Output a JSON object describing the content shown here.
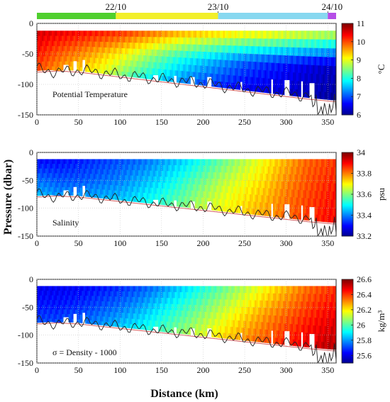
{
  "figure": {
    "shared_ylabel": "Pressure (dbar)",
    "shared_xlabel": "Distance (km)"
  },
  "timebar": {
    "dates": [
      {
        "label": "22/10",
        "km": 95
      },
      {
        "label": "23/10",
        "km": 218
      },
      {
        "label": "24/10",
        "km": 350
      }
    ],
    "segments": [
      {
        "from_km": 0,
        "to_km": 95,
        "color": "#4fcf2e"
      },
      {
        "from_km": 95,
        "to_km": 218,
        "color": "#f2ef2a"
      },
      {
        "from_km": 218,
        "to_km": 350,
        "color": "#87d8f0"
      },
      {
        "from_km": 350,
        "to_km": 360,
        "color": "#b54de6"
      }
    ]
  },
  "chart_data": [
    {
      "type": "heatmap",
      "annotation": "Potential Temperature",
      "x_ticks": [
        0,
        50,
        100,
        150,
        200,
        250,
        300,
        350
      ],
      "y_ticks": [
        0,
        -50,
        -100,
        -150
      ],
      "xlim": [
        0,
        360
      ],
      "ylim": [
        -150,
        0
      ],
      "colorbar": {
        "min": 6,
        "max": 11,
        "ticks": [
          6,
          7,
          8,
          9,
          10,
          11
        ],
        "label": "°C"
      },
      "field": {
        "x_km": [
          0,
          25,
          50,
          75,
          100,
          125,
          150,
          175,
          200,
          225,
          250,
          275,
          300,
          325,
          355
        ],
        "surface_values": [
          10.6,
          10.5,
          10.4,
          10.3,
          10.2,
          10.0,
          9.8,
          9.6,
          9.5,
          9.4,
          9.3,
          9.3,
          9.2,
          9.1,
          9.0
        ],
        "mid_values": [
          10.3,
          10.0,
          9.8,
          9.5,
          9.2,
          8.8,
          8.4,
          8.0,
          7.7,
          7.4,
          7.1,
          6.9,
          6.7,
          6.5,
          6.3
        ],
        "deep_values": [
          10.0,
          9.6,
          9.3,
          9.0,
          8.5,
          8.0,
          7.6,
          7.2,
          6.9,
          6.7,
          6.5,
          6.4,
          6.3,
          6.2,
          6.1
        ]
      },
      "bathymetry_dbar": [
        -75,
        -80,
        -77,
        -80,
        -85,
        -88,
        -92,
        -95,
        -98,
        -103,
        -108,
        -112,
        -115,
        -118,
        -120
      ],
      "smooth_bottom_dbar": [
        -80,
        -78,
        -80,
        -84,
        -88,
        -92,
        -96,
        -100,
        -104,
        -108,
        -112,
        -116,
        -120,
        -124,
        -128
      ]
    },
    {
      "type": "heatmap",
      "annotation": "Salinity",
      "x_ticks": [
        0,
        50,
        100,
        150,
        200,
        250,
        300,
        350
      ],
      "y_ticks": [
        0,
        -50,
        -100,
        -150
      ],
      "xlim": [
        0,
        360
      ],
      "ylim": [
        -150,
        0
      ],
      "colorbar": {
        "min": 33.2,
        "max": 34,
        "ticks": [
          33.2,
          33.4,
          33.6,
          33.8,
          34
        ],
        "label": "psu"
      },
      "field": {
        "x_km": [
          0,
          25,
          50,
          75,
          100,
          125,
          150,
          175,
          200,
          225,
          250,
          275,
          300,
          325,
          355
        ],
        "surface_values": [
          33.3,
          33.3,
          33.32,
          33.34,
          33.36,
          33.38,
          33.42,
          33.46,
          33.52,
          33.58,
          33.64,
          33.7,
          33.76,
          33.82,
          33.85
        ],
        "mid_values": [
          33.38,
          33.36,
          33.36,
          33.38,
          33.4,
          33.44,
          33.48,
          33.54,
          33.6,
          33.66,
          33.7,
          33.74,
          33.8,
          33.84,
          33.88
        ],
        "deep_values": [
          33.45,
          33.42,
          33.42,
          33.44,
          33.46,
          33.5,
          33.55,
          33.6,
          33.66,
          33.7,
          33.74,
          33.78,
          33.82,
          33.86,
          33.9
        ]
      },
      "bathymetry_dbar": [
        -75,
        -80,
        -77,
        -80,
        -85,
        -88,
        -92,
        -95,
        -98,
        -103,
        -108,
        -112,
        -115,
        -118,
        -120
      ],
      "smooth_bottom_dbar": [
        -80,
        -78,
        -80,
        -84,
        -88,
        -92,
        -96,
        -100,
        -104,
        -108,
        -112,
        -116,
        -120,
        -124,
        -128
      ]
    },
    {
      "type": "heatmap",
      "annotation": "σ = Density - 1000",
      "x_ticks": [
        0,
        50,
        100,
        150,
        200,
        250,
        300,
        350
      ],
      "y_ticks": [
        0,
        -50,
        -100,
        -150
      ],
      "xlim": [
        0,
        360
      ],
      "ylim": [
        -150,
        0
      ],
      "colorbar": {
        "min": 25.5,
        "max": 26.6,
        "ticks": [
          25.6,
          25.8,
          26,
          26.2,
          26.4,
          26.6
        ],
        "label": "kg/m³"
      },
      "field": {
        "x_km": [
          0,
          25,
          50,
          75,
          100,
          125,
          150,
          175,
          200,
          225,
          250,
          275,
          300,
          325,
          355
        ],
        "surface_values": [
          25.62,
          25.62,
          25.63,
          25.65,
          25.68,
          25.72,
          25.78,
          25.86,
          25.94,
          26.02,
          26.1,
          26.18,
          26.26,
          26.34,
          26.4
        ],
        "mid_values": [
          25.66,
          25.66,
          25.68,
          25.72,
          25.76,
          25.82,
          25.9,
          25.98,
          26.06,
          26.14,
          26.22,
          26.3,
          26.36,
          26.42,
          26.48
        ],
        "deep_values": [
          25.72,
          25.72,
          25.75,
          25.8,
          25.86,
          25.93,
          26.0,
          26.08,
          26.16,
          26.24,
          26.32,
          26.38,
          26.44,
          26.5,
          26.55
        ]
      },
      "bathymetry_dbar": [
        -75,
        -80,
        -77,
        -80,
        -85,
        -88,
        -92,
        -95,
        -98,
        -103,
        -108,
        -112,
        -115,
        -118,
        -120
      ],
      "smooth_bottom_dbar": [
        -80,
        -78,
        -80,
        -84,
        -88,
        -92,
        -96,
        -100,
        -104,
        -108,
        -112,
        -116,
        -120,
        -124,
        -128
      ]
    }
  ]
}
